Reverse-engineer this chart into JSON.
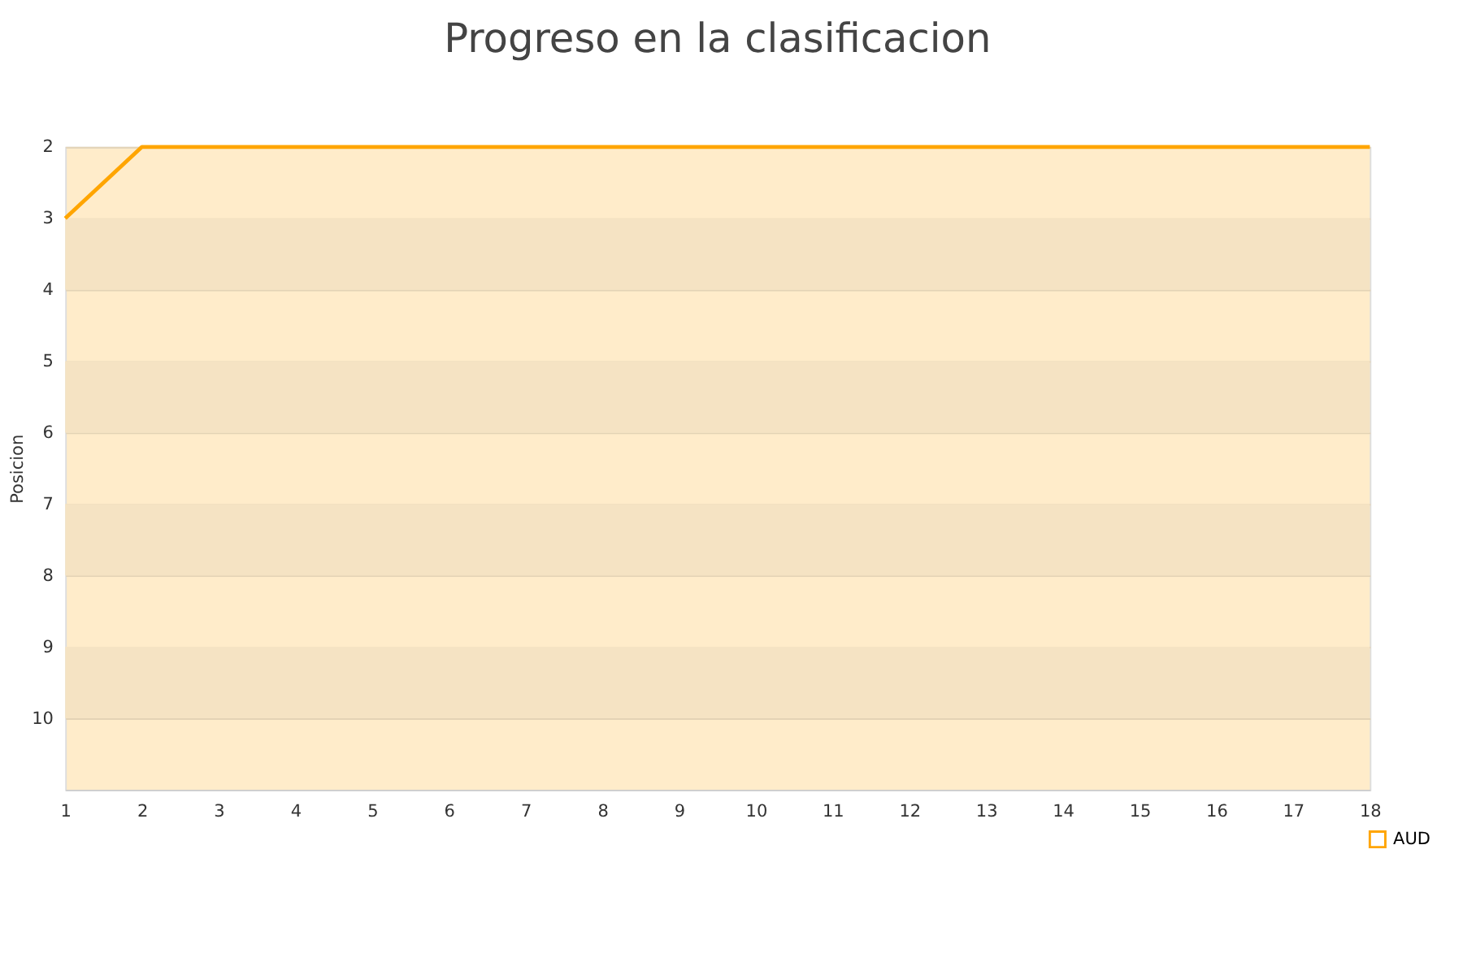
{
  "chart_data": {
    "type": "line",
    "title": "Progreso en la clasificacion",
    "ylabel": "Posicion",
    "x": [
      1,
      2,
      3,
      4,
      5,
      6,
      7,
      8,
      9,
      10,
      11,
      12,
      13,
      14,
      15,
      16,
      17,
      18
    ],
    "series": [
      {
        "name": "AUD",
        "color": "#ffa500",
        "values": [
          3,
          2,
          2,
          2,
          2,
          2,
          2,
          2,
          2,
          2,
          2,
          2,
          2,
          2,
          2,
          2,
          2,
          2
        ]
      }
    ],
    "xlim": [
      1,
      18
    ],
    "xticks": [
      1,
      2,
      3,
      4,
      5,
      6,
      7,
      8,
      9,
      10,
      11,
      12,
      13,
      14,
      15,
      16,
      17,
      18
    ],
    "ylim": [
      11,
      2
    ],
    "yticks": [
      2,
      3,
      4,
      5,
      6,
      7,
      8,
      9,
      10
    ],
    "bands": [
      {
        "axis": "y",
        "from": 3,
        "to": 4,
        "color": "#f5e3c3"
      },
      {
        "axis": "y",
        "from": 5,
        "to": 6,
        "color": "#f5e3c3"
      },
      {
        "axis": "y",
        "from": 7,
        "to": 8,
        "color": "#f5e3c3"
      },
      {
        "axis": "y",
        "from": 9,
        "to": 10,
        "color": "#f5e3c3"
      }
    ],
    "grid": "y",
    "legend": "bottom right",
    "marker": "none",
    "line_style": "solid"
  }
}
